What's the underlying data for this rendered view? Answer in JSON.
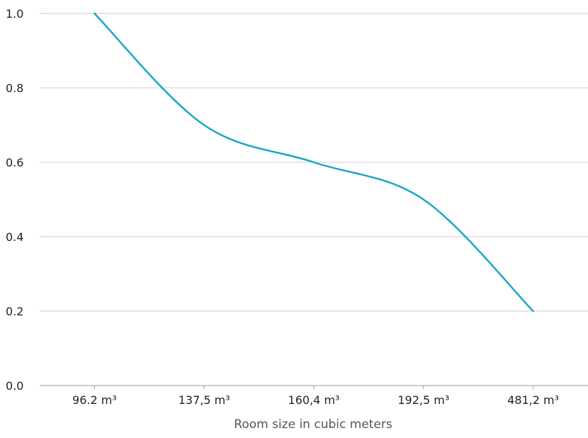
{
  "chart_data": {
    "type": "line",
    "categories": [
      "96.2 m³",
      "137,5 m³",
      "160,4 m³",
      "192,5 m³",
      "481,2 m³"
    ],
    "series": [
      {
        "values": [
          1.0,
          0.7,
          0.6,
          0.5,
          0.2
        ]
      }
    ],
    "xlabel": "Room size in cubic meters",
    "ylabel": "",
    "ylim": [
      0,
      1
    ],
    "yticks": [
      "0.0",
      "0.2",
      "0.4",
      "0.6",
      "0.8",
      "1.0"
    ],
    "grid": true,
    "colors": {
      "line": "#1aa6c6",
      "grid": "#cccccc",
      "text": "#222222",
      "axis_title": "#555555"
    }
  }
}
